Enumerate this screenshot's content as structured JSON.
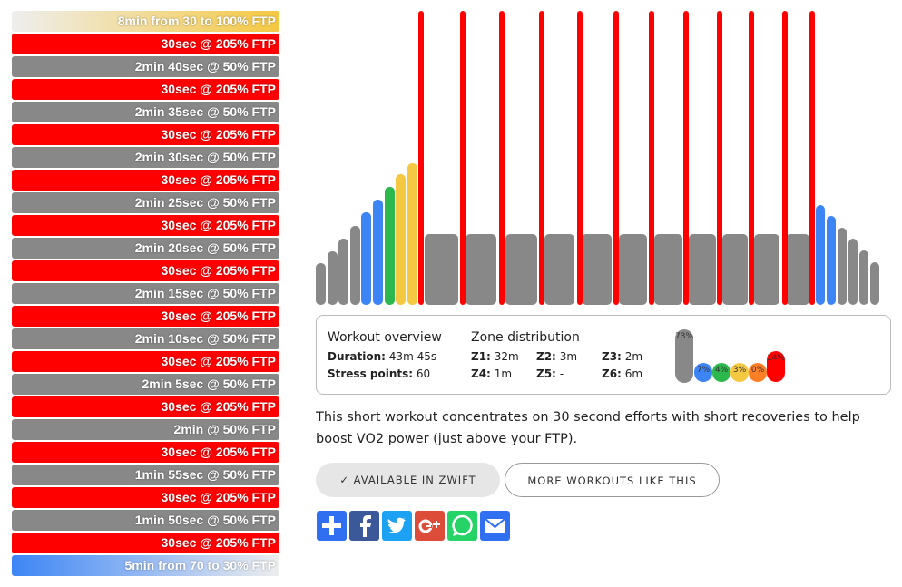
{
  "steps": [
    "8min from 30 to 100% FTP",
    "30sec @ 205% FTP",
    "2min 40sec @ 50% FTP",
    "30sec @ 205% FTP",
    "2min 35sec @ 50% FTP",
    "30sec @ 205% FTP",
    "2min 30sec @ 50% FTP",
    "30sec @ 205% FTP",
    "2min 25sec @ 50% FTP",
    "30sec @ 205% FTP",
    "2min 20sec @ 50% FTP",
    "30sec @ 205% FTP",
    "2min 15sec @ 50% FTP",
    "30sec @ 205% FTP",
    "2min 10sec @ 50% FTP",
    "30sec @ 205% FTP",
    "2min 5sec @ 50% FTP",
    "30sec @ 205% FTP",
    "2min @ 50% FTP",
    "30sec @ 205% FTP",
    "1min 55sec @ 50% FTP",
    "30sec @ 205% FTP",
    "1min 50sec @ 50% FTP",
    "30sec @ 205% FTP",
    "5min from 70 to 30% FTP"
  ],
  "overview": {
    "title": "Workout overview",
    "duration_label": "Duration:",
    "duration": "43m 45s",
    "stress_label": "Stress points:",
    "stress": "60"
  },
  "zones": {
    "title": "Zone distribution",
    "items": [
      {
        "label": "Z1:",
        "value": "32m"
      },
      {
        "label": "Z2:",
        "value": "3m"
      },
      {
        "label": "Z3:",
        "value": "2m"
      },
      {
        "label": "Z4:",
        "value": "1m"
      },
      {
        "label": "Z5:",
        "value": "-"
      },
      {
        "label": "Z6:",
        "value": "6m"
      }
    ],
    "bars": [
      "73%",
      "7%",
      "4%",
      "3%",
      "0%",
      "14%"
    ]
  },
  "description": "This short workout concentrates on 30 second efforts with short recoveries to help boost VO2 power (just above your FTP).",
  "buttons": [
    "✓ AVAILABLE IN ZWIFT",
    "MORE WORKOUTS LIKE THIS"
  ]
}
